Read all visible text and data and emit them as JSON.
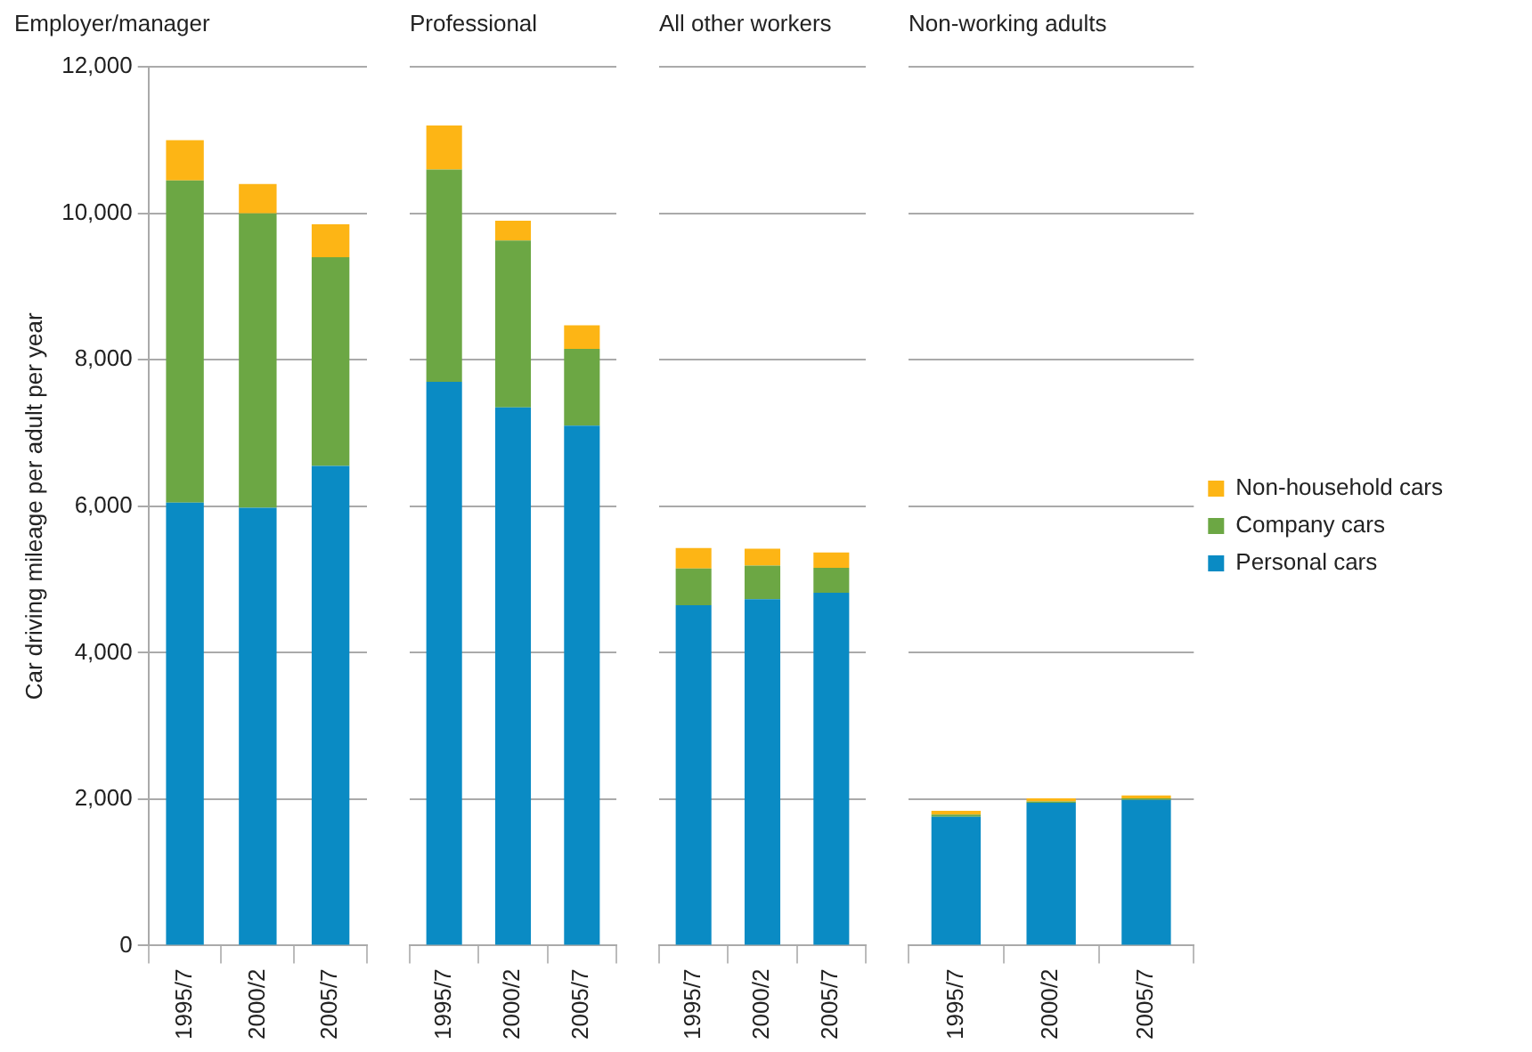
{
  "chart_data": [
    {
      "type": "bar",
      "stacked": true,
      "title": "Employer/manager",
      "ylabel": "Car driving mileage per adult per year",
      "categories": [
        "1995/7",
        "2000/2",
        "2005/7"
      ],
      "ylim": [
        0,
        12000
      ],
      "yticks": [
        {
          "value": 0,
          "label": "0"
        },
        {
          "value": 2000,
          "label": "2,000"
        },
        {
          "value": 4000,
          "label": "4,000"
        },
        {
          "value": 6000,
          "label": "6,000"
        },
        {
          "value": 8000,
          "label": "8,000"
        },
        {
          "value": 10000,
          "label": "10,000"
        },
        {
          "value": 12000,
          "label": "12,000"
        }
      ],
      "grid": "y",
      "series": [
        {
          "color": "#0a8bc4",
          "values": [
            6050,
            5980,
            6550
          ]
        },
        {
          "color": "#6ca744",
          "values": [
            4400,
            4020,
            2850
          ]
        },
        {
          "color": "#fdb515",
          "values": [
            550,
            400,
            450
          ]
        }
      ]
    },
    {
      "type": "bar",
      "stacked": true,
      "title": "Professional",
      "categories": [
        "1995/7",
        "2000/2",
        "2005/7"
      ],
      "ylim": [
        0,
        12000
      ],
      "yticks": [
        0,
        2000,
        4000,
        6000,
        8000,
        10000,
        12000
      ],
      "tick_labels": "x",
      "grid": "y",
      "series": [
        {
          "color": "#0a8bc4",
          "values": [
            7700,
            7350,
            7100
          ]
        },
        {
          "color": "#6ca744",
          "values": [
            2900,
            2280,
            1050
          ]
        },
        {
          "color": "#fdb515",
          "values": [
            600,
            270,
            320
          ]
        }
      ]
    },
    {
      "type": "bar",
      "stacked": true,
      "title": "All other workers",
      "categories": [
        "1995/7",
        "2000/2",
        "2005/7"
      ],
      "ylim": [
        0,
        12000
      ],
      "yticks": [
        0,
        2000,
        4000,
        6000,
        8000,
        10000,
        12000
      ],
      "tick_labels": "x",
      "grid": "y",
      "series": [
        {
          "color": "#0a8bc4",
          "values": [
            4650,
            4730,
            4820
          ]
        },
        {
          "color": "#6ca744",
          "values": [
            500,
            460,
            340
          ]
        },
        {
          "color": "#fdb515",
          "values": [
            280,
            230,
            210
          ]
        }
      ]
    },
    {
      "type": "bar",
      "stacked": true,
      "title": "Non-working adults",
      "categories": [
        "1995/7",
        "2000/2",
        "2005/7"
      ],
      "ylim": [
        0,
        12000
      ],
      "yticks": [
        0,
        2000,
        4000,
        6000,
        8000,
        10000,
        12000
      ],
      "tick_labels": "x",
      "grid": "y",
      "legend": "right",
      "series": [
        {
          "name": "Personal cars",
          "color": "#0a8bc4",
          "values": [
            1760,
            1950,
            1990
          ]
        },
        {
          "name": "Company cars",
          "color": "#6ca744",
          "values": [
            30,
            20,
            20
          ]
        },
        {
          "name": "Non-household cars",
          "color": "#fdb515",
          "values": [
            50,
            40,
            40
          ]
        }
      ]
    }
  ]
}
